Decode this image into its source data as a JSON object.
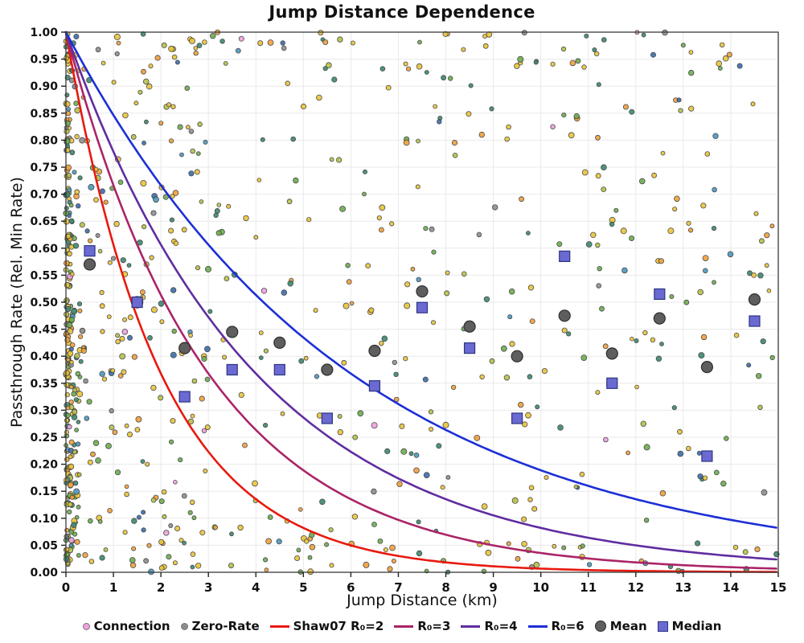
{
  "chart_data": {
    "type": "scatter",
    "title": "Jump Distance Dependence",
    "xlabel": "Jump Distance (km)",
    "ylabel": "Passthrough Rate (Rel. Min Rate)",
    "xlim": [
      0,
      15
    ],
    "ylim": [
      0,
      1
    ],
    "x_tick_step": 1,
    "y_tick_step": 0.05,
    "grid": true,
    "background": "#ffffff",
    "curves": [
      {
        "label": "Shaw07 R₀=2",
        "model": "exp(-x/R0)",
        "R0": 2,
        "color": "#e8190f"
      },
      {
        "label": "R₀=3",
        "model": "exp(-x/R0)",
        "R0": 3,
        "color": "#ab2468",
        "y_at_15": 0.007
      },
      {
        "label": "R₀=4",
        "model": "exp(-x/R0)",
        "R0": 4,
        "color": "#5f2da0",
        "y_at_15": 0.024
      },
      {
        "label": "R₀=6",
        "model": "exp(-x/R0)",
        "R0": 6,
        "color": "#1c2fd6",
        "y_at_15": 0.082
      }
    ],
    "mean_series": {
      "label": "Mean",
      "marker": "circle",
      "color": "#5e5e5e",
      "edge": "#2e2e2e",
      "x": [
        0.5,
        1.5,
        2.5,
        3.5,
        4.5,
        5.5,
        6.5,
        7.5,
        8.5,
        9.5,
        10.5,
        11.5,
        12.5,
        13.5,
        14.5
      ],
      "y": [
        0.57,
        0.5,
        0.415,
        0.445,
        0.425,
        0.375,
        0.41,
        0.52,
        0.455,
        0.4,
        0.475,
        0.405,
        0.47,
        0.38,
        0.505
      ]
    },
    "median_series": {
      "label": "Median",
      "marker": "square",
      "color": "#6a6ad2",
      "edge": "#2d3580",
      "x": [
        0.5,
        1.5,
        2.5,
        3.5,
        4.5,
        5.5,
        6.5,
        7.5,
        8.5,
        9.5,
        10.5,
        11.5,
        12.5,
        13.5,
        14.5
      ],
      "y": [
        0.595,
        0.5,
        0.325,
        0.375,
        0.375,
        0.285,
        0.345,
        0.49,
        0.415,
        0.285,
        0.585,
        0.35,
        0.515,
        0.215,
        0.465
      ]
    },
    "scatter": {
      "description": "dense multicolor point cloud, heaviest near x=0, spread over full plot",
      "seed": 1337,
      "point_edge": "#3c3c3c",
      "palette": [
        {
          "color": "#eac53d",
          "weight": 0.28
        },
        {
          "color": "#f0a13e",
          "weight": 0.13
        },
        {
          "color": "#b9c24b",
          "weight": 0.12
        },
        {
          "color": "#6fae52",
          "weight": 0.17
        },
        {
          "color": "#3f8a70",
          "weight": 0.15
        },
        {
          "color": "#4e9ac0",
          "weight": 0.06
        },
        {
          "color": "#3e6fae",
          "weight": 0.04
        },
        {
          "color": "#f0a0e0",
          "weight": 0.02
        },
        {
          "color": "#909090",
          "weight": 0.03
        }
      ],
      "groups": [
        {
          "count": 250,
          "x_dist": "exponential",
          "x_min": 0,
          "x_max": 0.45,
          "x_scale": 0.1,
          "y_min": 0,
          "y_max": 1
        },
        {
          "count": 150,
          "x_dist": "uniform",
          "x_min": 0.1,
          "x_max": 3.2,
          "y_min": 0,
          "y_max": 1
        },
        {
          "count": 360,
          "x_dist": "uniform",
          "x_min": 0.2,
          "x_max": 15,
          "y_min": 0,
          "y_max": 1
        },
        {
          "count": 50,
          "x_dist": "uniform",
          "x_min": 0,
          "x_max": 15,
          "y_min": 0.93,
          "y_max": 1.0
        },
        {
          "count": 35,
          "x_dist": "uniform",
          "x_min": 0,
          "x_max": 15,
          "y_min": 0.0,
          "y_max": 0.06
        }
      ]
    },
    "legend": [
      {
        "label": "Connection",
        "marker": "dot",
        "color": "#f0a0e0"
      },
      {
        "label": "Zero-Rate",
        "marker": "dot",
        "color": "#8c8c8c"
      },
      {
        "label": "Shaw07 R₀=2",
        "marker": "line",
        "color": "#e8190f"
      },
      {
        "label": "R₀=3",
        "marker": "line",
        "color": "#ab2468"
      },
      {
        "label": "R₀=4",
        "marker": "line",
        "color": "#5f2da0"
      },
      {
        "label": "R₀=6",
        "marker": "line",
        "color": "#1c2fd6"
      },
      {
        "label": "Mean",
        "marker": "circle-large",
        "color": "#5e5e5e"
      },
      {
        "label": "Median",
        "marker": "square",
        "color": "#6a6ad2"
      }
    ]
  }
}
